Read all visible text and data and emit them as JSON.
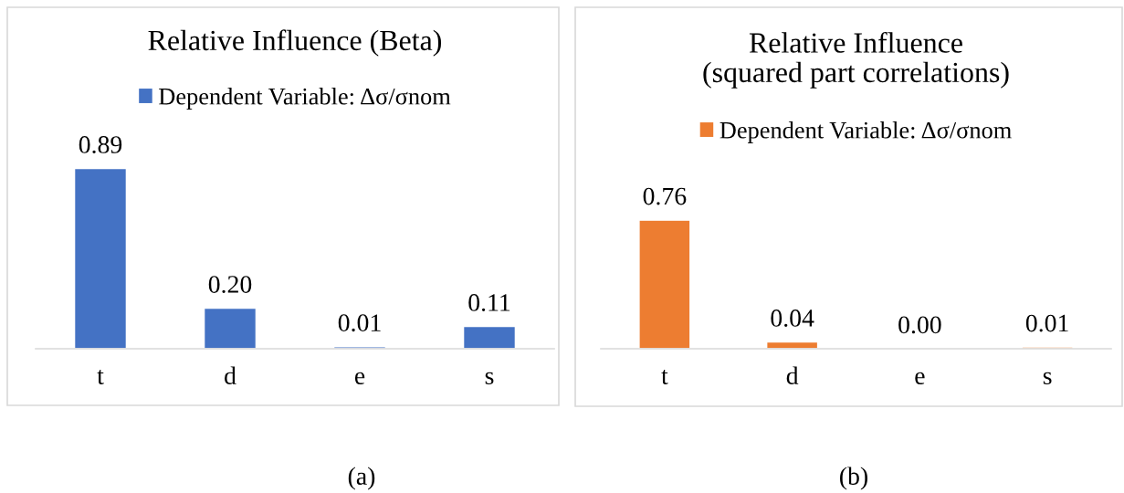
{
  "chart_data": [
    {
      "type": "bar",
      "title": "Relative Influence (Beta)",
      "categories": [
        "t",
        "d",
        "e",
        "s"
      ],
      "series": [
        {
          "name": "Dependent Variable: Δσ/σnom",
          "color": "#4472c4",
          "values": [
            0.89,
            0.2,
            0.01,
            0.11
          ],
          "value_labels": [
            "0.89",
            "0.20",
            "0.01",
            "0.11"
          ]
        }
      ],
      "legend": "top",
      "tick_labels": "x",
      "annotations": [
        "(a)"
      ]
    },
    {
      "type": "bar",
      "title": "Relative Influence\n(squared part correlations)",
      "categories": [
        "t",
        "d",
        "e",
        "s"
      ],
      "series": [
        {
          "name": "Dependent Variable: Δσ/σnom",
          "color": "#ed7d31",
          "values": [
            0.76,
            0.04,
            0.0,
            0.01
          ],
          "value_labels": [
            "0.76",
            "0.04",
            "0.00",
            "0.01"
          ]
        }
      ],
      "legend": "top",
      "tick_labels": "x",
      "annotations": [
        "(b)"
      ]
    }
  ]
}
